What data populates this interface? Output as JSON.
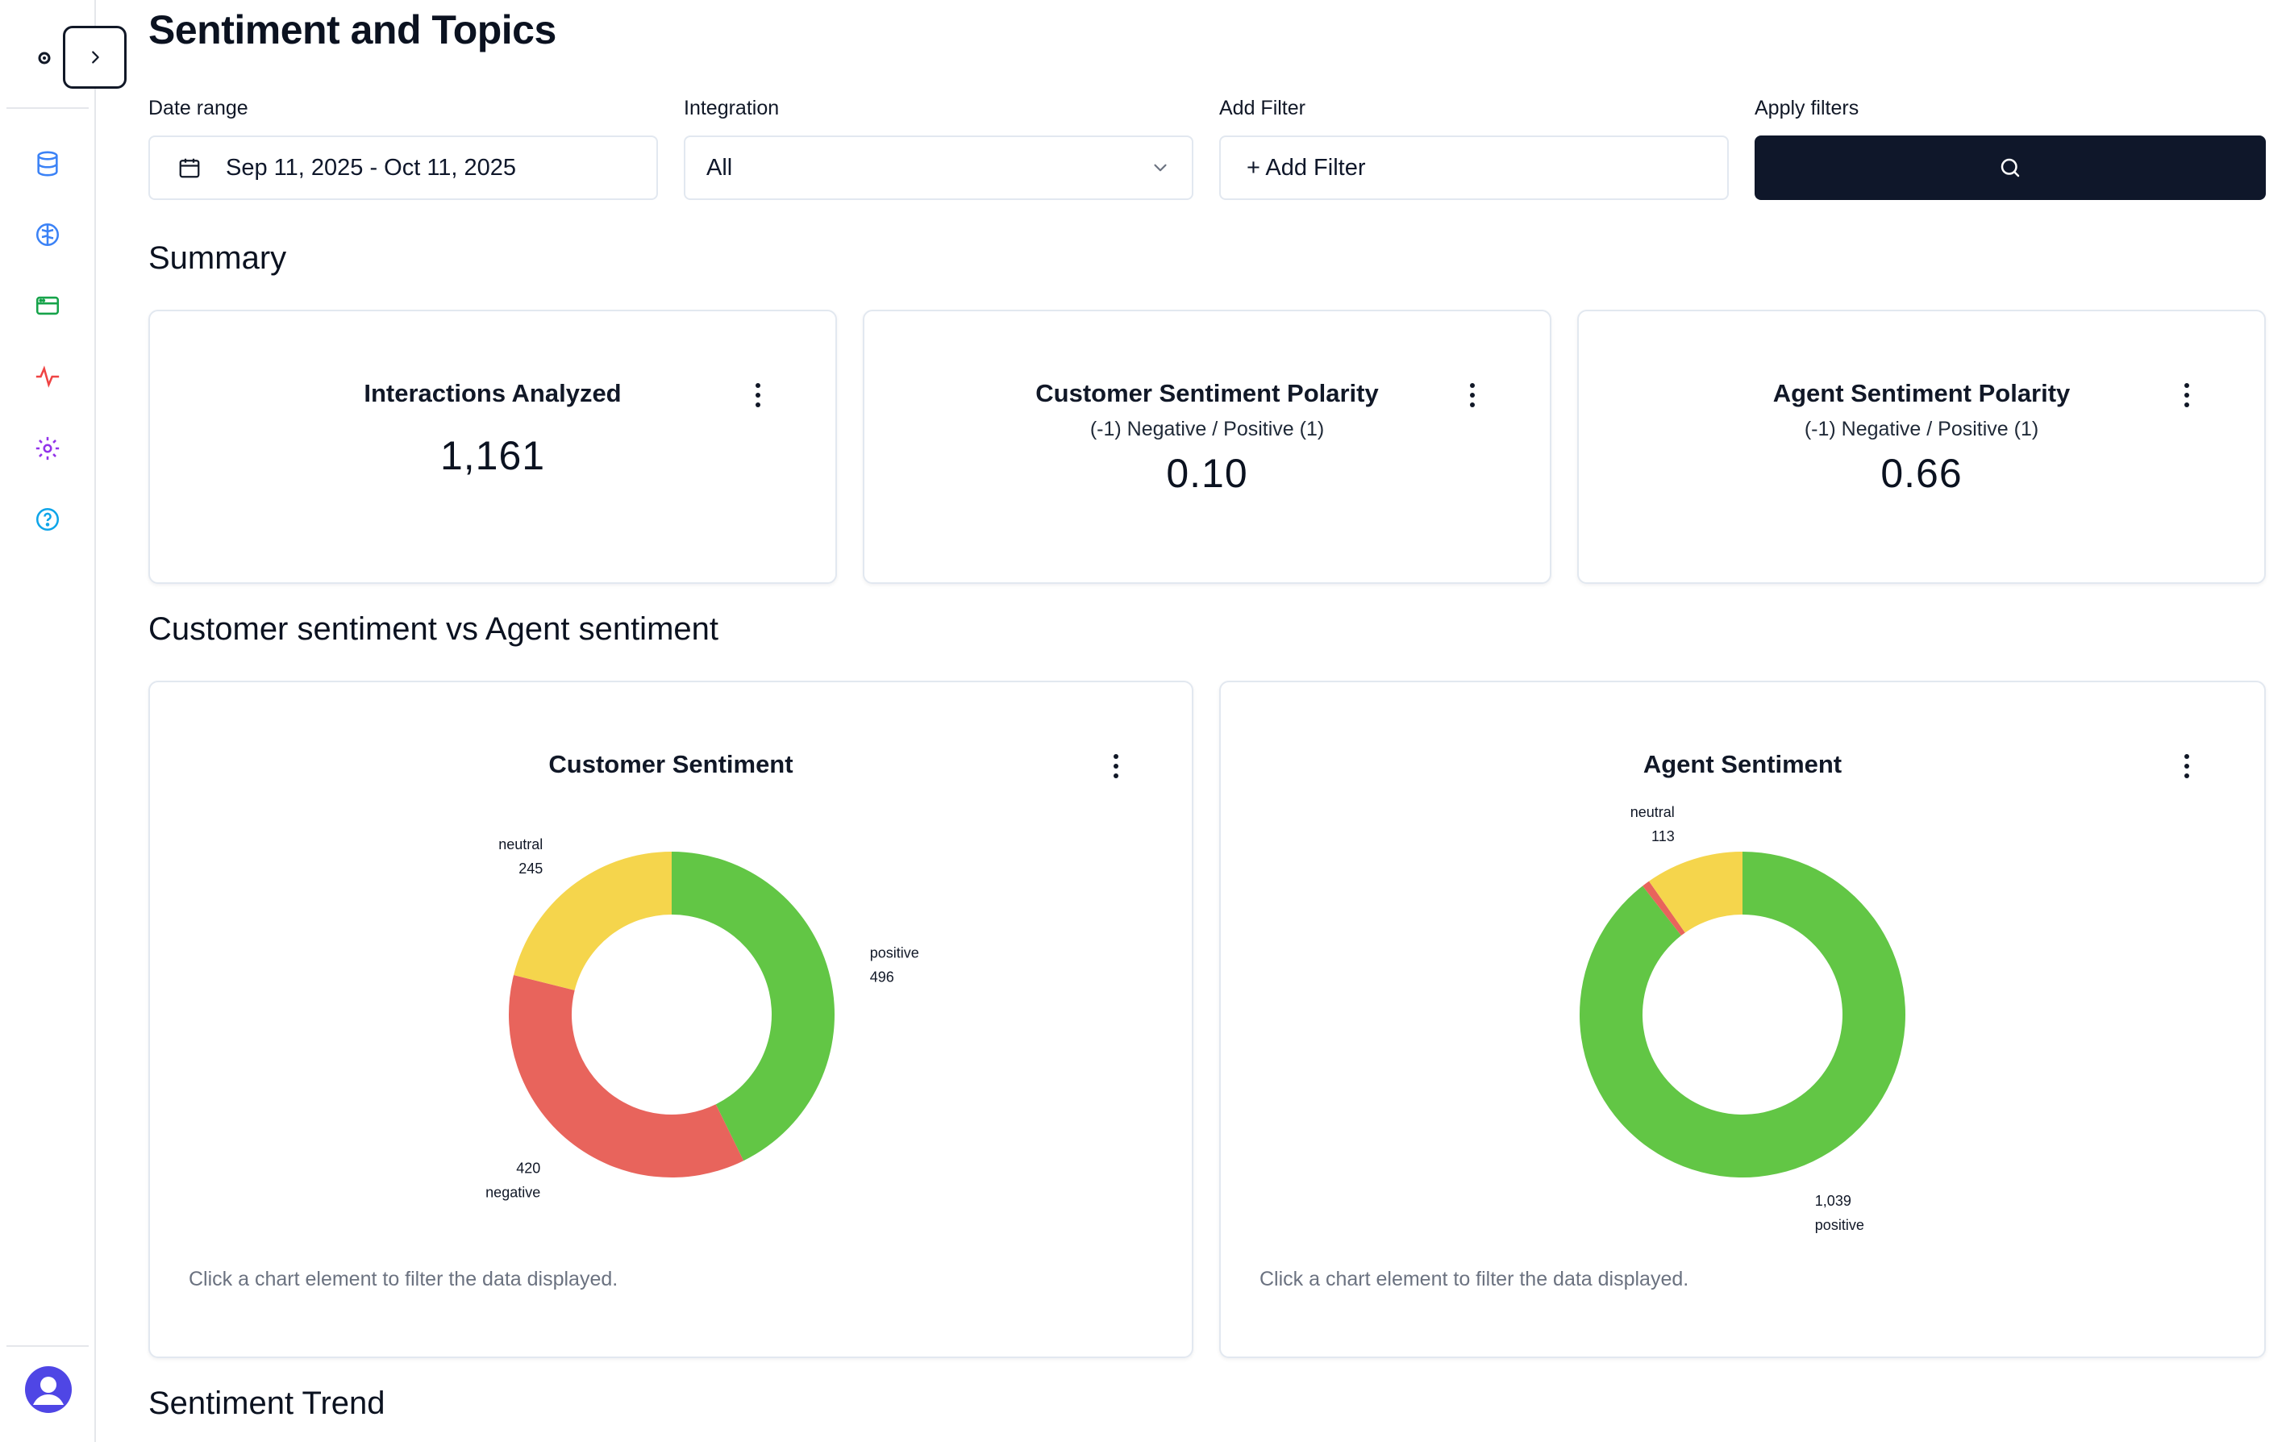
{
  "page": {
    "title": "Sentiment and Topics"
  },
  "sidebar": {
    "items": [
      {
        "name": "database-icon",
        "color": "#3b82f6"
      },
      {
        "name": "brain-icon",
        "color": "#3b82f6"
      },
      {
        "name": "browser-window-icon",
        "color": "#16a34a"
      },
      {
        "name": "activity-pulse-icon",
        "color": "#ef4444"
      },
      {
        "name": "gear-icon",
        "color": "#9333ea"
      },
      {
        "name": "help-circle-icon",
        "color": "#0ea5e9"
      }
    ]
  },
  "filters": {
    "date_range": {
      "label": "Date range",
      "value": "Sep 11, 2025 - Oct 11, 2025"
    },
    "integration": {
      "label": "Integration",
      "value": "All"
    },
    "add_filter": {
      "label": "Add Filter",
      "button": "+ Add Filter"
    },
    "apply": {
      "label": "Apply filters"
    }
  },
  "summary": {
    "title": "Summary",
    "cards": [
      {
        "title": "Interactions Analyzed",
        "subtitle": "",
        "value": "1,161"
      },
      {
        "title": "Customer Sentiment Polarity",
        "subtitle": "(-1) Negative / Positive (1)",
        "value": "0.10"
      },
      {
        "title": "Agent Sentiment Polarity",
        "subtitle": "(-1) Negative / Positive (1)",
        "value": "0.66"
      }
    ]
  },
  "comparison": {
    "title": "Customer sentiment vs Agent sentiment",
    "hint": "Click a chart element to filter the data displayed."
  },
  "trend": {
    "title": "Sentiment Trend"
  },
  "colors": {
    "positive": "#62c645",
    "negative": "#e8645c",
    "neutral": "#f5d54c",
    "primary": "#0f172a"
  },
  "chart_data": [
    {
      "type": "pie",
      "title": "Customer Sentiment",
      "categories": [
        "positive",
        "negative",
        "neutral"
      ],
      "values": [
        496,
        420,
        245
      ],
      "labels": [
        "496",
        "420",
        "245"
      ]
    },
    {
      "type": "pie",
      "title": "Agent Sentiment",
      "categories": [
        "positive",
        "negative",
        "neutral"
      ],
      "values": [
        1039,
        9,
        113
      ],
      "labels": [
        "1,039",
        "",
        "113"
      ]
    }
  ]
}
